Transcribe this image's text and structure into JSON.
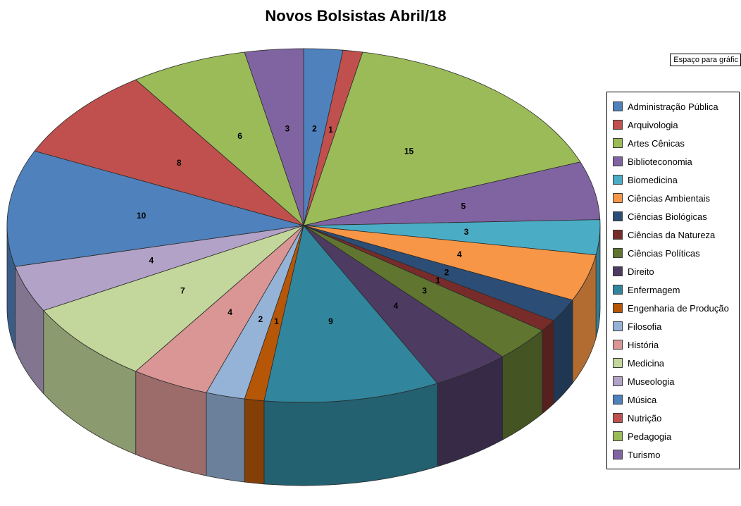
{
  "title": "Novos Bolsistas Abril/18",
  "textbox": {
    "label": "Espaço para gráfic"
  },
  "chart_data": {
    "type": "pie",
    "title": "Novos Bolsistas Abril/18",
    "style": "3d-pie",
    "legend_position": "right",
    "total": 94,
    "start_angle_deg": 0,
    "direction": "clockwise",
    "series": [
      {
        "name": "Administração Pública",
        "value": 2,
        "color": "#4F81BD"
      },
      {
        "name": "Arquivologia",
        "value": 1,
        "color": "#C0504D"
      },
      {
        "name": "Artes Cênicas",
        "value": 15,
        "color": "#9BBB59"
      },
      {
        "name": "Biblioteconomia",
        "value": 5,
        "color": "#8064A2"
      },
      {
        "name": "Biomedicina",
        "value": 3,
        "color": "#4BACC6"
      },
      {
        "name": "Ciências Ambientais",
        "value": 4,
        "color": "#F79646"
      },
      {
        "name": "Ciências Biológicas",
        "value": 2,
        "color": "#2C4D75"
      },
      {
        "name": "Ciências da Natureza",
        "value": 1,
        "color": "#772C2A"
      },
      {
        "name": "Ciências Políticas",
        "value": 3,
        "color": "#5F7530"
      },
      {
        "name": "Direito",
        "value": 4,
        "color": "#4D3B62"
      },
      {
        "name": "Enfermagem",
        "value": 9,
        "color": "#31859C"
      },
      {
        "name": "Engenharia de Produção",
        "value": 1,
        "color": "#B65708"
      },
      {
        "name": "Filosofia",
        "value": 2,
        "color": "#95B3D7"
      },
      {
        "name": "História",
        "value": 4,
        "color": "#D99694"
      },
      {
        "name": "Medicina",
        "value": 7,
        "color": "#C3D69B"
      },
      {
        "name": "Museologia",
        "value": 4,
        "color": "#B3A2C7"
      },
      {
        "name": "Música",
        "value": 10,
        "color": "#4F81BD"
      },
      {
        "name": "Nutrição",
        "value": 8,
        "color": "#C0504D"
      },
      {
        "name": "Pedagogia",
        "value": 6,
        "color": "#9BBB59"
      },
      {
        "name": "Turismo",
        "value": 3,
        "color": "#8064A2"
      }
    ]
  }
}
